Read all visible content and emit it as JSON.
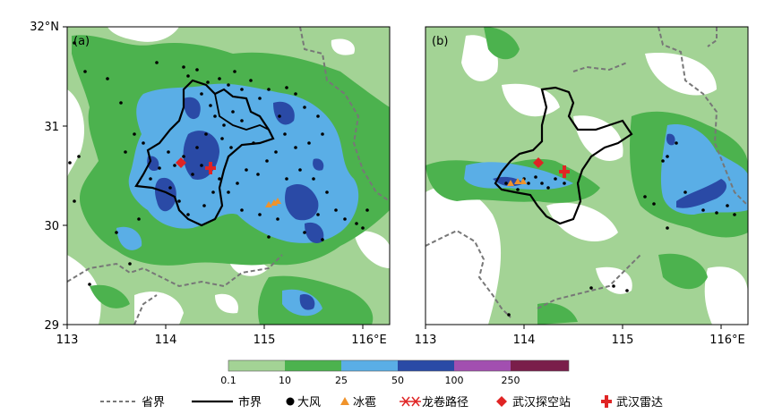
{
  "panels": [
    {
      "label": "(a)"
    },
    {
      "label": "(b)"
    }
  ],
  "axes": {
    "y_ticks": [
      "32°N",
      "31",
      "30",
      "29"
    ],
    "x_ticks_a": [
      "113",
      "114",
      "115",
      "116°E"
    ],
    "x_ticks_b": [
      "113",
      "114",
      "115",
      "116°E"
    ]
  },
  "colorbar": {
    "ticks": [
      "0.1",
      "10",
      "25",
      "50",
      "100",
      "250"
    ],
    "colors": [
      "#a3d395",
      "#4cb24e",
      "#5aaee6",
      "#2a4aa6",
      "#a24fb0",
      "#7a1e4a"
    ]
  },
  "legend": {
    "province": "省界",
    "city": "市界",
    "gale": "大风",
    "hail": "冰雹",
    "tornado": "龙卷路径",
    "sounding": "武汉探空站",
    "radar": "武汉雷达"
  },
  "colors": {
    "light_green": "#a3d395",
    "green": "#4cb24e",
    "light_blue": "#5aaee6",
    "dark_blue": "#2a4aa6",
    "hail": "#f0932b",
    "marker_red": "#e02424",
    "boundary_gray": "#777777"
  }
}
